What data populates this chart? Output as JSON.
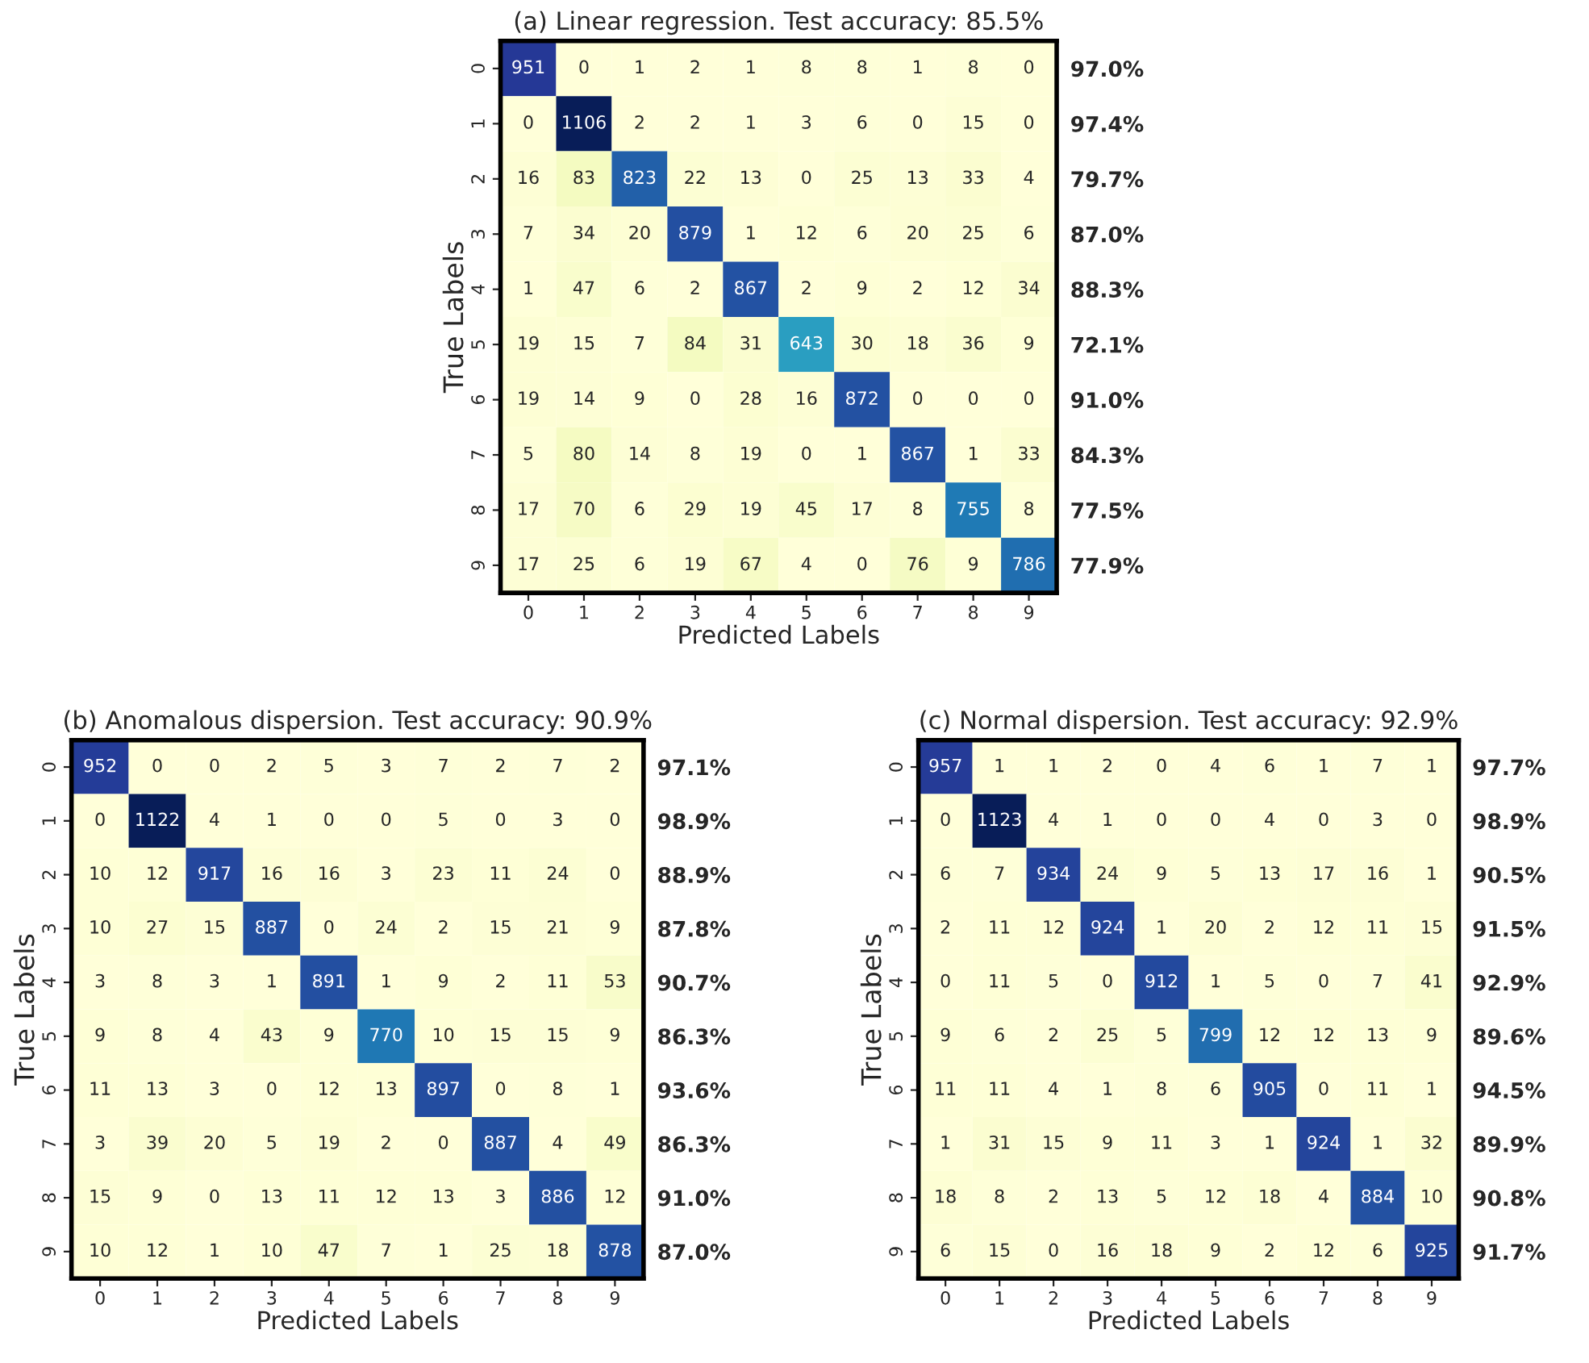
{
  "chart_data": [
    {
      "type": "heatmap",
      "title": "(a) Linear regression. Test accuracy: 85.5%",
      "xlabel": "Predicted Labels",
      "ylabel": "True Labels",
      "data_labels": true,
      "categories": [
        "0",
        "1",
        "2",
        "3",
        "4",
        "5",
        "6",
        "7",
        "8",
        "9"
      ],
      "y_categories": [
        "0",
        "1",
        "2",
        "3",
        "4",
        "5",
        "6",
        "7",
        "8",
        "9"
      ],
      "y2_categories": [
        "97.0%",
        "97.4%",
        "79.7%",
        "87.0%",
        "88.3%",
        "72.1%",
        "91.0%",
        "84.3%",
        "77.5%",
        "77.9%"
      ],
      "cells": [
        [
          951,
          0,
          1,
          2,
          1,
          8,
          8,
          1,
          8,
          0
        ],
        [
          0,
          1106,
          2,
          2,
          1,
          3,
          6,
          0,
          15,
          0
        ],
        [
          16,
          83,
          823,
          22,
          13,
          0,
          25,
          13,
          33,
          4
        ],
        [
          7,
          34,
          20,
          879,
          1,
          12,
          6,
          20,
          25,
          6
        ],
        [
          1,
          47,
          6,
          2,
          867,
          2,
          9,
          2,
          12,
          34
        ],
        [
          19,
          15,
          7,
          84,
          31,
          643,
          30,
          18,
          36,
          9
        ],
        [
          19,
          14,
          9,
          0,
          28,
          16,
          872,
          0,
          0,
          0
        ],
        [
          5,
          80,
          14,
          8,
          19,
          0,
          1,
          867,
          1,
          33
        ],
        [
          17,
          70,
          6,
          29,
          19,
          45,
          17,
          8,
          755,
          8
        ],
        [
          17,
          25,
          6,
          19,
          67,
          4,
          0,
          76,
          9,
          786
        ]
      ]
    },
    {
      "type": "heatmap",
      "title": "(b) Anomalous dispersion. Test accuracy: 90.9%",
      "xlabel": "Predicted Labels",
      "ylabel": "True Labels",
      "data_labels": true,
      "categories": [
        "0",
        "1",
        "2",
        "3",
        "4",
        "5",
        "6",
        "7",
        "8",
        "9"
      ],
      "y_categories": [
        "0",
        "1",
        "2",
        "3",
        "4",
        "5",
        "6",
        "7",
        "8",
        "9"
      ],
      "y2_categories": [
        "97.1%",
        "98.9%",
        "88.9%",
        "87.8%",
        "90.7%",
        "86.3%",
        "93.6%",
        "86.3%",
        "91.0%",
        "87.0%"
      ],
      "cells": [
        [
          952,
          0,
          0,
          2,
          5,
          3,
          7,
          2,
          7,
          2
        ],
        [
          0,
          1122,
          4,
          1,
          0,
          0,
          5,
          0,
          3,
          0
        ],
        [
          10,
          12,
          917,
          16,
          16,
          3,
          23,
          11,
          24,
          0
        ],
        [
          10,
          27,
          15,
          887,
          0,
          24,
          2,
          15,
          21,
          9
        ],
        [
          3,
          8,
          3,
          1,
          891,
          1,
          9,
          2,
          11,
          53
        ],
        [
          9,
          8,
          4,
          43,
          9,
          770,
          10,
          15,
          15,
          9
        ],
        [
          11,
          13,
          3,
          0,
          12,
          13,
          897,
          0,
          8,
          1
        ],
        [
          3,
          39,
          20,
          5,
          19,
          2,
          0,
          887,
          4,
          49
        ],
        [
          15,
          9,
          0,
          13,
          11,
          12,
          13,
          3,
          886,
          12
        ],
        [
          10,
          12,
          1,
          10,
          47,
          7,
          1,
          25,
          18,
          878
        ]
      ]
    },
    {
      "type": "heatmap",
      "title": "(c) Normal dispersion. Test accuracy: 92.9%",
      "xlabel": "Predicted Labels",
      "ylabel": "True Labels",
      "data_labels": true,
      "categories": [
        "0",
        "1",
        "2",
        "3",
        "4",
        "5",
        "6",
        "7",
        "8",
        "9"
      ],
      "y_categories": [
        "0",
        "1",
        "2",
        "3",
        "4",
        "5",
        "6",
        "7",
        "8",
        "9"
      ],
      "y2_categories": [
        "97.7%",
        "98.9%",
        "90.5%",
        "91.5%",
        "92.9%",
        "89.6%",
        "94.5%",
        "89.9%",
        "90.8%",
        "91.7%"
      ],
      "cells": [
        [
          957,
          1,
          1,
          2,
          0,
          4,
          6,
          1,
          7,
          1
        ],
        [
          0,
          1123,
          4,
          1,
          0,
          0,
          4,
          0,
          3,
          0
        ],
        [
          6,
          7,
          934,
          24,
          9,
          5,
          13,
          17,
          16,
          1
        ],
        [
          2,
          11,
          12,
          924,
          1,
          20,
          2,
          12,
          11,
          15
        ],
        [
          0,
          11,
          5,
          0,
          912,
          1,
          5,
          0,
          7,
          41
        ],
        [
          9,
          6,
          2,
          25,
          5,
          799,
          12,
          12,
          13,
          9
        ],
        [
          11,
          11,
          4,
          1,
          8,
          6,
          905,
          0,
          11,
          1
        ],
        [
          1,
          31,
          15,
          9,
          11,
          3,
          1,
          924,
          1,
          32
        ],
        [
          18,
          8,
          2,
          13,
          5,
          12,
          18,
          4,
          884,
          10
        ],
        [
          6,
          15,
          0,
          16,
          18,
          9,
          2,
          12,
          6,
          925
        ]
      ]
    }
  ]
}
